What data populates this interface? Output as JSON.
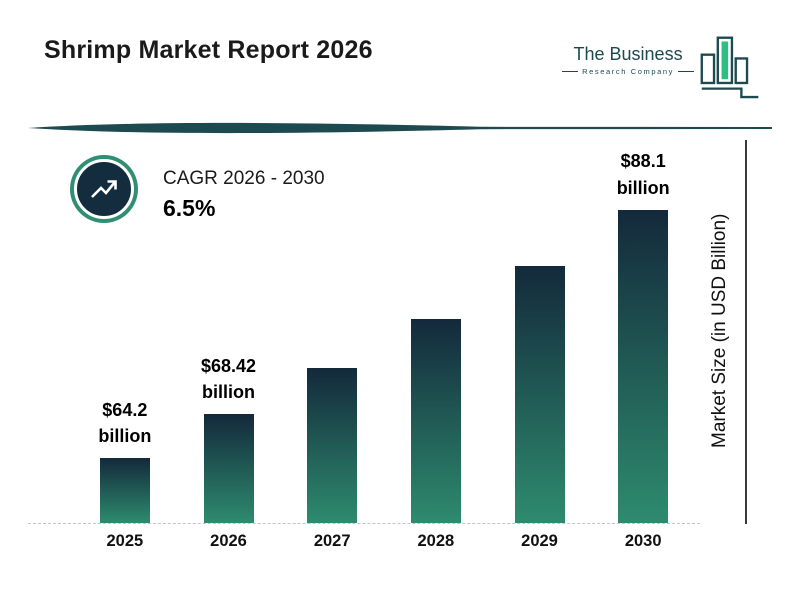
{
  "header": {
    "title": "Shrimp Market Report 2026"
  },
  "logo": {
    "name": "The Business",
    "subtitle": "Research Company"
  },
  "cagr": {
    "label": "CAGR 2026 - 2030",
    "value": "6.5%"
  },
  "chart_data": {
    "type": "bar",
    "title": "Shrimp Market Report 2026",
    "categories": [
      "2025",
      "2026",
      "2027",
      "2028",
      "2029",
      "2030"
    ],
    "values": [
      64.2,
      68.42,
      72.9,
      77.6,
      82.7,
      88.1
    ],
    "data_labels": [
      "$64.2 billion",
      "$68.42 billion",
      "",
      "",
      "",
      "$88.1 billion"
    ],
    "xlabel": "",
    "ylabel": "Market Size (in USD Billion)",
    "ylim": [
      58,
      95
    ],
    "grid": false,
    "legend": false,
    "cagr_label": "CAGR 2026 - 2030",
    "cagr_value": "6.5%",
    "bar_gradient_top": "#13293b",
    "bar_gradient_bottom": "#2e8b6e",
    "accent_color": "#2f8e74",
    "dark_color": "#132c3e"
  }
}
